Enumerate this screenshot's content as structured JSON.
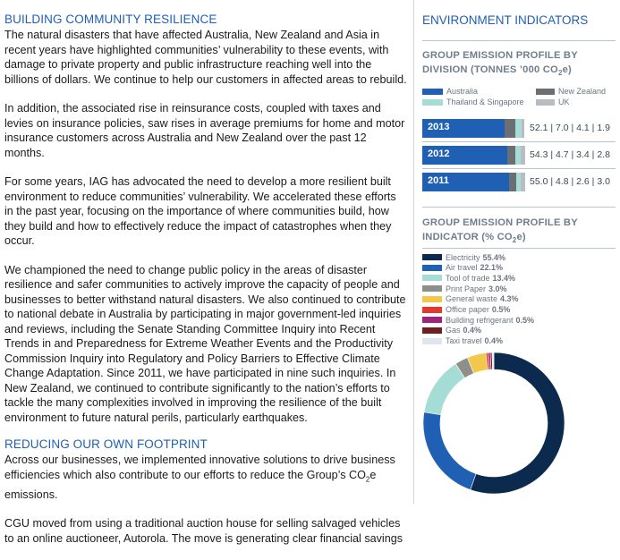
{
  "left": {
    "heading1": "BUILDING COMMUNITY RESILIENCE",
    "p1": "The natural disasters that have affected Australia, New Zealand and Asia in recent years have highlighted communities’ vulnerability to these events, with damage to private property and public infrastructure reaching well into the billions of dollars. We continue to help our customers in affected areas to rebuild.",
    "p2": "In addition, the associated rise in reinsurance costs, coupled with taxes and levies on insurance policies, saw rises in average premiums for home and motor insurance customers across Australia and New Zealand over the past 12 months.",
    "p3": "For some years, IAG has advocated the need to develop a more resilient built environment to reduce communities’ vulnerability. We accelerated these efforts in the past year, focusing on the importance of where communities build, how they build and how to effectively reduce the impact of catastrophes when they occur.",
    "p4": "We championed the need to change public policy in the areas of disaster resilience and safer communities to actively improve the capacity of people and businesses to better withstand natural disasters. We also continued to contribute to national debate in Australia by participating in major government-led inquiries and reviews, including the Senate Standing Committee Inquiry into Recent Trends in and Preparedness for Extreme Weather Events and the Productivity Commission Inquiry into Regulatory and Policy Barriers to Effective Climate Change Adaptation. Since 2011, we have participated in nine such inquiries. In New Zealand, we continued to contribute significantly to the nation’s efforts to tackle the many complexities involved in improving the resilience of the built environment to future natural perils, particularly earthquakes.",
    "heading2": "REDUCING OUR OWN FOOTPRINT",
    "p5_before": "Across our businesses, we implemented innovative solutions to drive business efficiencies which also contribute to our efforts to reduce the Group’s CO",
    "p5_sub": "2",
    "p5_after": "e emissions.",
    "p6": "CGU moved from using a traditional auction house for selling salvaged vehicles to an online auctioneer, Autorola. The move is generating clear financial savings"
  },
  "right": {
    "title": "ENVIRONMENT INDICATORS",
    "division_title_a": "GROUP EMISSION PROFILE BY DIVISION (TONNES ’000 CO",
    "division_title_sub": "2",
    "division_title_b": "e)",
    "indicator_title_a": "GROUP EMISSION PROFILE BY INDICATOR (% CO",
    "indicator_title_sub": "2",
    "indicator_title_b": "e)"
  },
  "chart_data": [
    {
      "type": "bar",
      "stacked": true,
      "orientation": "horizontal",
      "categories": [
        "2013",
        "2012",
        "2011"
      ],
      "series": [
        {
          "name": "Australia",
          "color": "#1f5fb4",
          "values": [
            52.1,
            54.3,
            55.0
          ]
        },
        {
          "name": "New Zealand",
          "color": "#6b6e73",
          "values": [
            7.0,
            4.7,
            4.8
          ]
        },
        {
          "name": "Thailand & Singapore",
          "color": "#a6dcd6",
          "values": [
            4.1,
            3.4,
            2.6
          ]
        },
        {
          "name": "UK",
          "color": "#b9bcc0",
          "values": [
            1.9,
            2.8,
            3.0
          ]
        }
      ],
      "value_labels": [
        "52.1 | 7.0 | 4.1 | 1.9",
        "54.3 | 4.7 | 3.4 | 2.8",
        "55.0 | 4.8 | 2.6 | 3.0"
      ]
    },
    {
      "type": "pie",
      "donut": true,
      "slices": [
        {
          "label": "Electricity",
          "value": 55.4,
          "value_label": "55.4%",
          "color": "#0c2a4d"
        },
        {
          "label": "Air travel",
          "value": 22.1,
          "value_label": "22.1%",
          "color": "#1f5fb4"
        },
        {
          "label": "Tool of trade",
          "value": 13.4,
          "value_label": "13.4%",
          "color": "#a6dcd6"
        },
        {
          "label": "Print Paper",
          "value": 3.0,
          "value_label": "3.0%",
          "color": "#8e8f8a"
        },
        {
          "label": "General waste",
          "value": 4.3,
          "value_label": "4.3%",
          "color": "#f2c84b"
        },
        {
          "label": "Office paper",
          "value": 0.5,
          "value_label": "0.5%",
          "color": "#e23a2e"
        },
        {
          "label": "Building refrigerant",
          "value": 0.5,
          "value_label": "0.5%",
          "color": "#a0247e"
        },
        {
          "label": "Gas",
          "value": 0.4,
          "value_label": "0.4%",
          "color": "#6e1f1f"
        },
        {
          "label": "Taxi travel",
          "value": 0.4,
          "value_label": "0.4%",
          "color": "#dfe6f1"
        }
      ]
    }
  ]
}
